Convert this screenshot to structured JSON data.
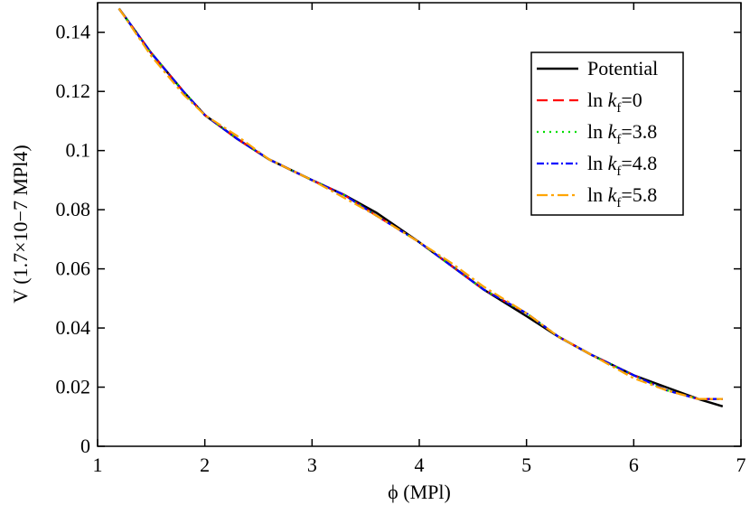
{
  "chart_data": {
    "type": "line",
    "x_label": "ϕ (MPl)",
    "y_label": "V (1.7×10−7 MPl4)",
    "x": [
      1.2,
      1.5,
      1.8,
      2.0,
      2.3,
      2.6,
      3.0,
      3.3,
      3.6,
      4.0,
      4.3,
      4.6,
      5.0,
      5.3,
      5.6,
      6.0,
      6.3,
      6.6,
      6.83
    ],
    "series": [
      {
        "name": "Potential",
        "color": "#000000",
        "values": [
          0.148,
          0.133,
          0.12,
          0.112,
          0.104,
          0.097,
          0.09,
          0.085,
          0.079,
          0.069,
          0.061,
          0.053,
          0.044,
          0.037,
          0.031,
          0.024,
          0.02,
          0.016,
          0.0135
        ]
      },
      {
        "name": "ln kf=0",
        "color": "#ff0000",
        "values": [
          0.148,
          0.133,
          0.12,
          0.112,
          0.104,
          0.097,
          0.09,
          0.085,
          0.078,
          0.069,
          0.061,
          0.053,
          0.045,
          0.037,
          0.031,
          0.024,
          0.019,
          0.016,
          0.016
        ]
      },
      {
        "name": "ln kf=3.8",
        "color": "#00dd00",
        "values": [
          0.148,
          0.133,
          0.12,
          0.112,
          0.104,
          0.097,
          0.09,
          0.085,
          0.078,
          0.069,
          0.061,
          0.053,
          0.045,
          0.037,
          0.031,
          0.024,
          0.019,
          0.016,
          0.016
        ]
      },
      {
        "name": "ln kf=4.8",
        "color": "#0000ff",
        "values": [
          0.148,
          0.133,
          0.12,
          0.112,
          0.104,
          0.097,
          0.09,
          0.085,
          0.078,
          0.069,
          0.061,
          0.053,
          0.045,
          0.037,
          0.031,
          0.024,
          0.019,
          0.016,
          0.016
        ]
      },
      {
        "name": "ln kf=5.8",
        "color": "#ffa500",
        "values": [
          0.148,
          0.132,
          0.119,
          0.112,
          0.105,
          0.097,
          0.09,
          0.084,
          0.078,
          0.069,
          0.062,
          0.054,
          0.045,
          0.037,
          0.031,
          0.023,
          0.019,
          0.016,
          0.016
        ]
      }
    ],
    "xlim": [
      1,
      7
    ],
    "xticks": [
      1,
      2,
      3,
      4,
      5,
      6,
      7
    ],
    "ylim": [
      0,
      0.15
    ],
    "yticks": [
      0,
      0.02,
      0.04,
      0.06,
      0.08,
      0.1,
      0.12,
      0.14
    ],
    "legend": "upper right"
  }
}
